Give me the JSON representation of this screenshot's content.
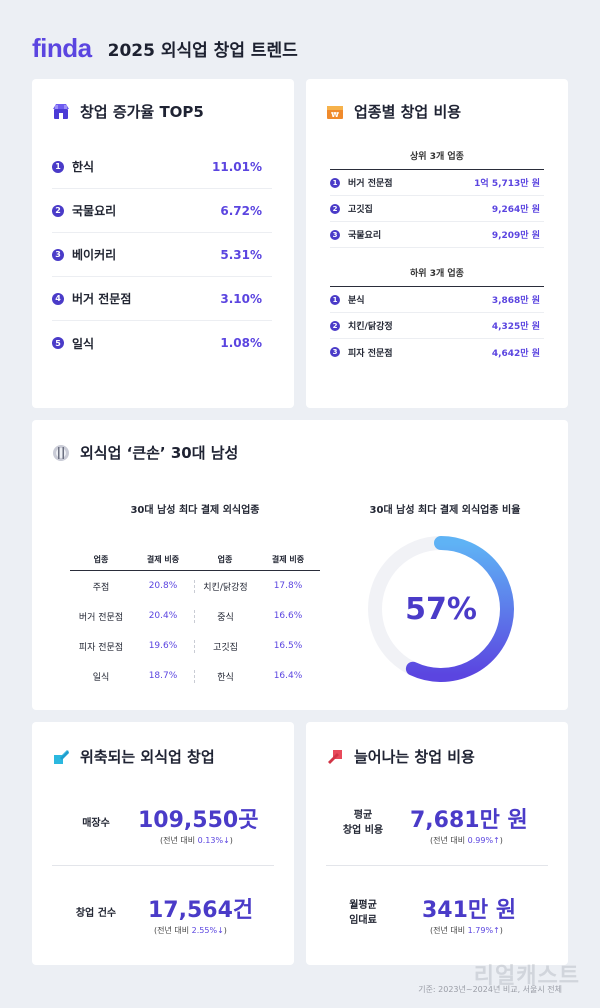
{
  "header": {
    "logo": "finda",
    "title": "2025 외식업 창업 트렌드"
  },
  "top5": {
    "title": "창업 증가율 TOP5",
    "items": [
      {
        "rank": "1",
        "name": "한식",
        "value": "11.01%"
      },
      {
        "rank": "2",
        "name": "국물요리",
        "value": "6.72%"
      },
      {
        "rank": "3",
        "name": "베이커리",
        "value": "5.31%"
      },
      {
        "rank": "4",
        "name": "버거 전문점",
        "value": "3.10%"
      },
      {
        "rank": "5",
        "name": "일식",
        "value": "1.08%"
      }
    ]
  },
  "cost": {
    "title": "업종별 창업 비용",
    "top_head": "상위 3개 업종",
    "top": [
      {
        "rank": "1",
        "name": "버거 전문점",
        "value": "1억 5,713만 원"
      },
      {
        "rank": "2",
        "name": "고깃집",
        "value": "9,264만 원"
      },
      {
        "rank": "3",
        "name": "국물요리",
        "value": "9,209만 원"
      }
    ],
    "bottom_head": "하위 3개 업종",
    "bottom": [
      {
        "rank": "1",
        "name": "분식",
        "value": "3,868만 원"
      },
      {
        "rank": "2",
        "name": "치킨/닭강정",
        "value": "4,325만 원"
      },
      {
        "rank": "3",
        "name": "피자 전문점",
        "value": "4,642만 원"
      }
    ]
  },
  "bigspender": {
    "title": "외식업 ‘큰손’ 30대 남성",
    "table_title": "30대 남성 최다 결제 외식업종",
    "headers": [
      "업종",
      "결제 비중",
      "업종",
      "결제 비중"
    ],
    "rows": [
      [
        "주점",
        "20.8%",
        "치킨/닭강정",
        "17.8%"
      ],
      [
        "버거 전문점",
        "20.4%",
        "중식",
        "16.6%"
      ],
      [
        "피자 전문점",
        "19.6%",
        "고깃집",
        "16.5%"
      ],
      [
        "일식",
        "18.7%",
        "한식",
        "16.4%"
      ]
    ],
    "donut_title": "30대 남성 최다 결제 외식업종 비율",
    "donut_label": "57%",
    "donut_value": 57,
    "colors": {
      "track": "#f1f2f6",
      "start": "#5b45e0",
      "end": "#5fb3f5"
    }
  },
  "shrink": {
    "title": "위축되는 외식업 창업",
    "stats": [
      {
        "label": "매장수",
        "value": "109,550곳",
        "sub_prefix": "(전년 대비 ",
        "sub_value": "0.13%↓",
        "sub_suffix": ")"
      },
      {
        "label": "창업 건수",
        "value": "17,564건",
        "sub_prefix": "(전년 대비 ",
        "sub_value": "2.55%↓",
        "sub_suffix": ")"
      }
    ]
  },
  "rising": {
    "title": "늘어나는 창업 비용",
    "stats": [
      {
        "label": "평균\n창업 비용",
        "value": "7,681만 원",
        "sub_prefix": "(전년 대비 ",
        "sub_value": "0.99%↑",
        "sub_suffix": ")"
      },
      {
        "label": "월평균\n임대료",
        "value": "341만 원",
        "sub_prefix": "(전년 대비 ",
        "sub_value": "1.79%↑",
        "sub_suffix": ")"
      }
    ]
  },
  "footer": {
    "note": "기준: 2023년~2024년 비교, 서울시 전체",
    "watermark": "리얼캐스트"
  }
}
